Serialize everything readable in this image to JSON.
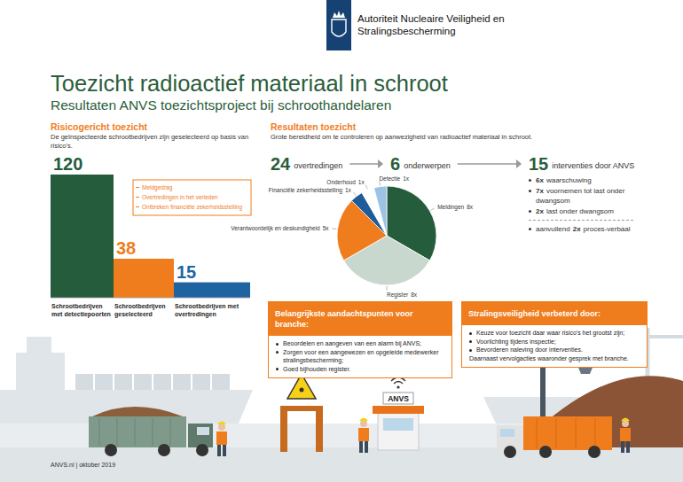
{
  "header": {
    "org_lines": [
      "Autoriteit Nucleaire Veiligheid en",
      "Stralingsbescherming"
    ],
    "title": "Toezicht radioactief materiaal in schroot",
    "subtitle": "Resultaten ANVS toezichtsproject bij schroothandelaren"
  },
  "chart_data": [
    {
      "type": "bar",
      "title": "Risicogericht toezicht",
      "subtitle": "De geïnspecteerde schrootbedrijven zijn geselecteerd op basis van risico's.",
      "categories": [
        "Schrootbedrijven met detectiepoorten",
        "Schrootbedrijven geselecteerd",
        "Schrootbedrijven met overtredingen"
      ],
      "values": [
        120,
        38,
        15
      ],
      "colors": [
        "#245c3c",
        "#f07d1d",
        "#1f64a1"
      ],
      "ylim": [
        0,
        120
      ],
      "data_labels": true,
      "tick_labels": "x",
      "annotations": [
        "Meldgedrag",
        "Overtredingen in het verleden",
        "Ontbreken financiële zekerheidsstelling"
      ]
    },
    {
      "type": "pie",
      "title": "Resultaten toezicht",
      "subtitle": "Grote bereidheid om te controleren op aanwezigheid van radioactief materiaal in schroot.",
      "categories": [
        "Meldingen",
        "Register",
        "Verantwoordelijk en deskundigheid",
        "Financiële zekerheidsstelling",
        "Onderhoud",
        "Detectie"
      ],
      "values": [
        8,
        8,
        5,
        1,
        1,
        1
      ],
      "value_labels": [
        "8x",
        "8x",
        "5x",
        "1x",
        "1x",
        "1x"
      ],
      "colors": [
        "#245c3c",
        "#c9d8cf",
        "#f07d1d",
        "#1d5c98",
        "#ffffff",
        "#9cc3e6"
      ],
      "data_labels": true
    }
  ],
  "flow": [
    {
      "number": 24,
      "label": "overtredingen"
    },
    {
      "number": 6,
      "label": "onderwerpen"
    },
    {
      "number": 15,
      "label": "interventies door ANVS"
    }
  ],
  "interventions": {
    "items": [
      {
        "count": "6x",
        "text": "waarschuwing"
      },
      {
        "count": "7x",
        "text": "voornemen tot last onder dwangsom"
      },
      {
        "count": "2x",
        "text": "last onder dwangsom"
      }
    ],
    "extra": {
      "pre": "aanvullend",
      "count": "2x",
      "text": "proces-verbaal"
    }
  },
  "boxes": [
    {
      "title": "Belangrijkste aandachtspunten voor branche:",
      "items": [
        "Beoordelen en aangeven van een alarm bij ANVS;",
        "Zorgen voor een aangewezen en opgeleide medewerker stralingsbescherming;",
        "Goed bijhouden register."
      ]
    },
    {
      "title": "Stralingsveiligheid verbeterd door:",
      "items": [
        "Keuze voor toezicht daar waar risico's het grootst zijn;",
        "Voorlichting tijdens inspectie;",
        "Bevorderen naleving door interventies."
      ],
      "note": "Daarnaast vervolgacties waaronder gesprek met branche."
    }
  ],
  "scene": {
    "booth_label": "ANVS"
  },
  "footer": "ANVS.nl | oktober 2019"
}
